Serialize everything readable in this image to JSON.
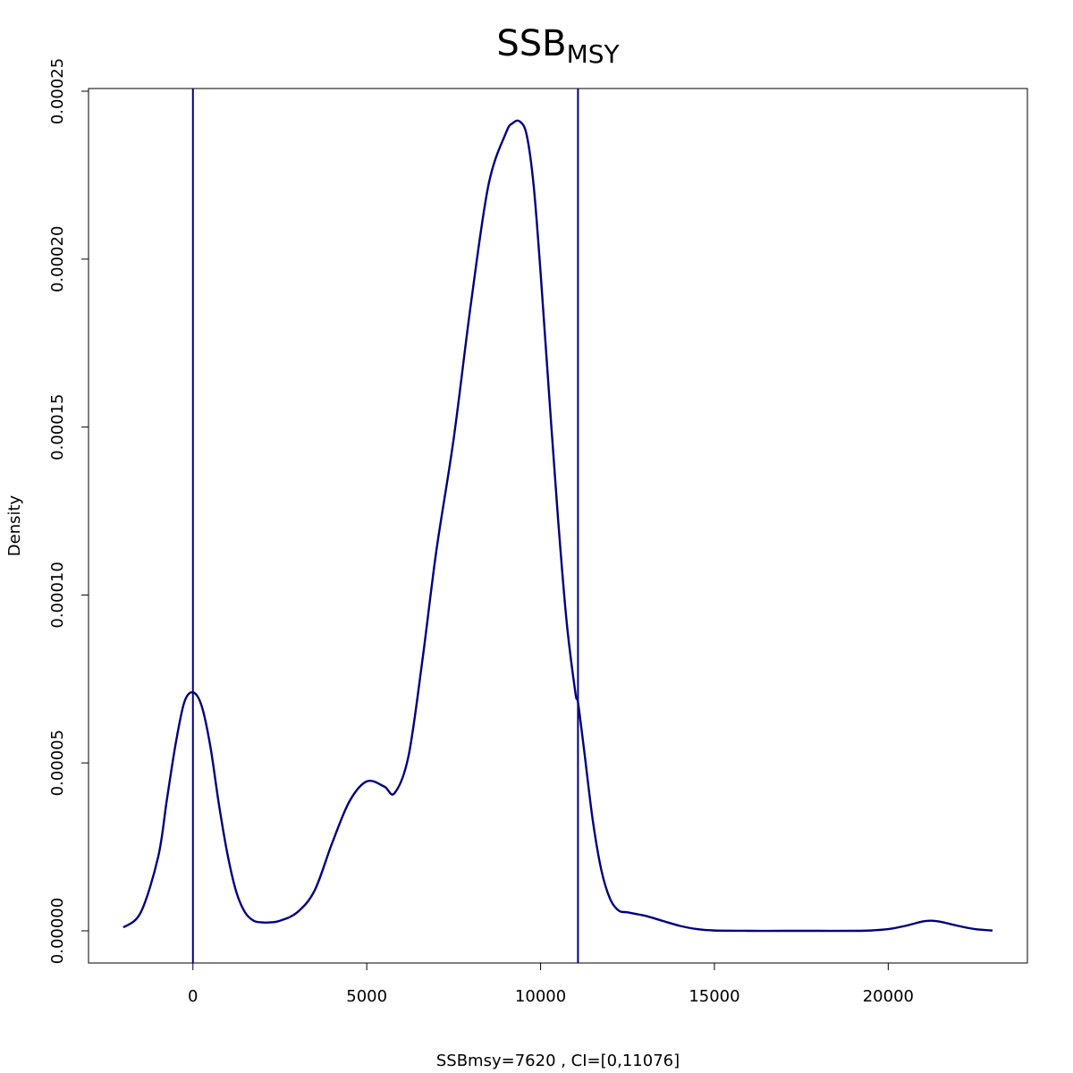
{
  "chart_data": {
    "type": "line",
    "title": "SSB",
    "title_subscript": "MSY",
    "xlabel": "SSBmsy=7620 , CI=[0,11076]",
    "ylabel": "Density",
    "xlim": [
      -2000,
      23000
    ],
    "ylim": [
      0,
      0.00025
    ],
    "x_ticks": [
      0,
      5000,
      10000,
      15000,
      20000
    ],
    "x_tick_labels": [
      "0",
      "5000",
      "10000",
      "15000",
      "20000"
    ],
    "y_ticks": [
      0,
      5e-05,
      0.0001,
      0.00015,
      0.0002,
      0.00025
    ],
    "y_tick_labels": [
      "0.00000",
      "0.00005",
      "0.00010",
      "0.00015",
      "0.00020",
      "0.00025"
    ],
    "grid": false,
    "line_color": "#000080",
    "vertical_lines": [
      0,
      11076
    ],
    "series": [
      {
        "x": [
          -2000,
          -1500,
          -1000,
          -750,
          -500,
          -250,
          0,
          250,
          500,
          750,
          1000,
          1250,
          1500,
          1750,
          2000,
          2200,
          2500,
          3000,
          3500,
          4000,
          4500,
          5000,
          5500,
          5800,
          6200,
          6600,
          7000,
          7500,
          8000,
          8500,
          9000,
          9200,
          9400,
          9600,
          9800,
          10000,
          10250,
          10500,
          10750,
          11000,
          11076,
          11250,
          11500,
          11750,
          12000,
          12250,
          12500,
          13000,
          13500,
          14000,
          14500,
          15000,
          16000,
          17000,
          18000,
          19000,
          19500,
          20000,
          20500,
          21000,
          21250,
          21500,
          22000,
          22500,
          23000
        ],
        "y": [
          1e-06,
          5.5e-06,
          2.2e-05,
          3.9e-05,
          5.55e-05,
          6.8e-05,
          7.1e-05,
          6.7e-05,
          5.5e-05,
          3.75e-05,
          2.25e-05,
          1.15e-05,
          5.5e-06,
          3e-06,
          2.5e-06,
          2.5e-06,
          3e-06,
          5.5e-06,
          1.2e-05,
          2.6e-05,
          3.85e-05,
          4.45e-05,
          4.3e-05,
          4.1e-05,
          5.2e-05,
          8.05e-05,
          0.000113,
          0.0001465,
          0.000187,
          0.000222,
          0.0002375,
          0.0002405,
          0.000241,
          0.000237,
          0.000222,
          0.000196,
          0.000159,
          0.000123,
          9.2e-05,
          7.1e-05,
          6.8e-05,
          5.4e-05,
          3.3e-05,
          1.8e-05,
          9.5e-06,
          6e-06,
          5.5e-06,
          4.5e-06,
          3e-06,
          1.5e-06,
          5e-07,
          1e-07,
          0.0,
          0.0,
          0.0,
          0.0,
          1e-07,
          5e-07,
          1.5e-06,
          2.8e-06,
          3e-06,
          2.7e-06,
          1.5e-06,
          5e-07,
          1e-07
        ]
      }
    ]
  }
}
